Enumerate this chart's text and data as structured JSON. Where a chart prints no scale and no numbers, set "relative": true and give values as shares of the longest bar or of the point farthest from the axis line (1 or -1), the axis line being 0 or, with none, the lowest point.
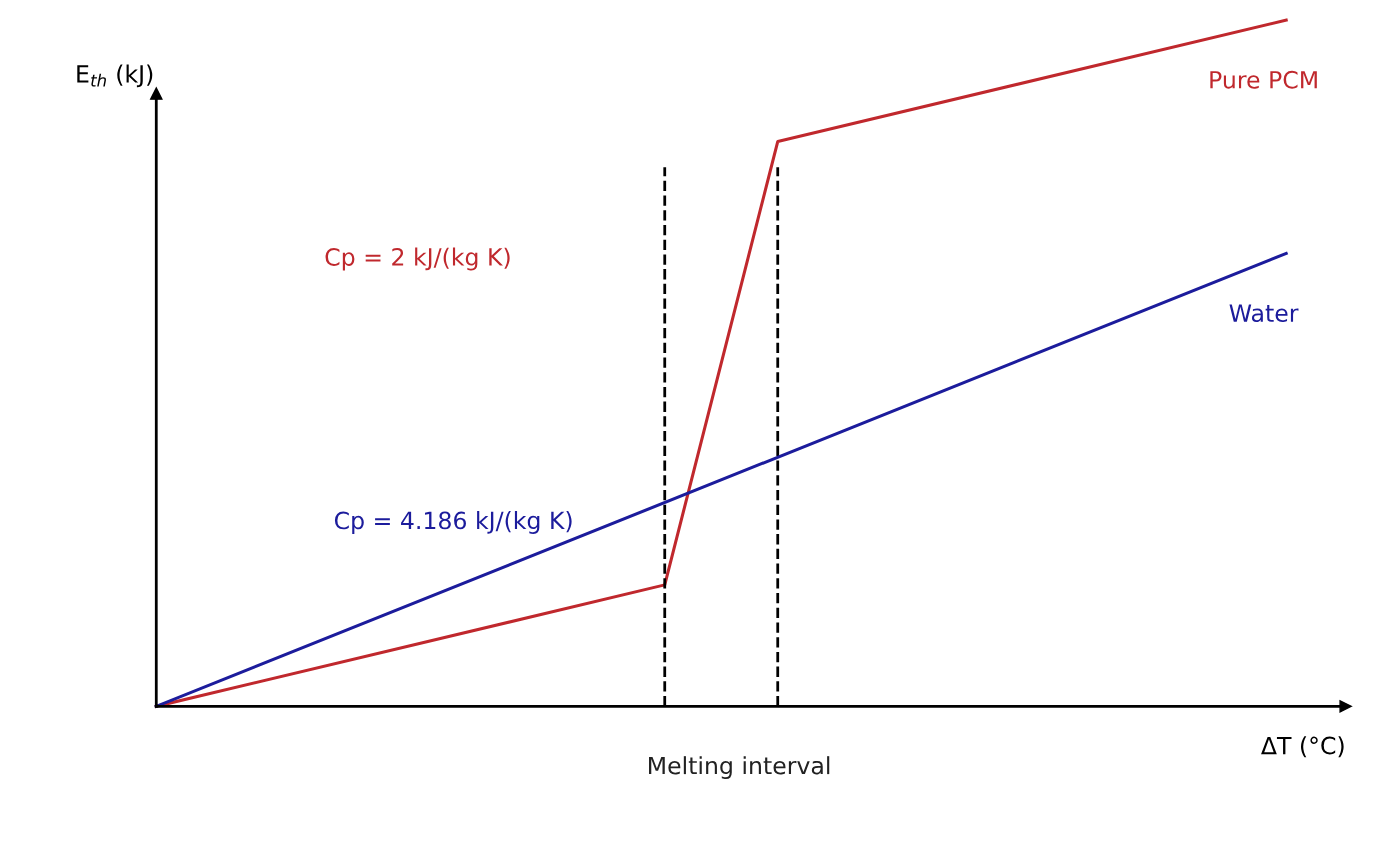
{
  "chart_data": {
    "type": "line",
    "relative": true,
    "xlabel": "ΔT (°C)",
    "ylabel": "E$_{th}$ (kJ)",
    "categories": [
      null,
      null,
      null,
      null,
      null,
      null,
      null,
      null,
      null,
      null,
      null,
      null,
      null,
      null,
      null,
      null,
      null,
      null,
      null,
      null,
      null
    ],
    "series": [
      {
        "name": "Pure PCM",
        "color": "#c0282d",
        "values": [
          0,
          null,
          null,
          null,
          null,
          null,
          null,
          null,
          null,
          0.177,
          null,
          0.823,
          null,
          null,
          null,
          null,
          null,
          null,
          null,
          null,
          1
        ]
      },
      {
        "name": "Water",
        "color": "#1c1c9c",
        "values": [
          0,
          null,
          null,
          null,
          null,
          null,
          null,
          null,
          null,
          null,
          null,
          null,
          null,
          null,
          null,
          null,
          null,
          null,
          null,
          null,
          0.66
        ]
      }
    ],
    "annotations": [
      "Cp = 2 kJ/(kg K)",
      "Cp = 4.186 kJ/(kg K)",
      "Melting interval"
    ],
    "marker": "none",
    "line_style": "solid",
    "grid": false,
    "legend": false
  }
}
